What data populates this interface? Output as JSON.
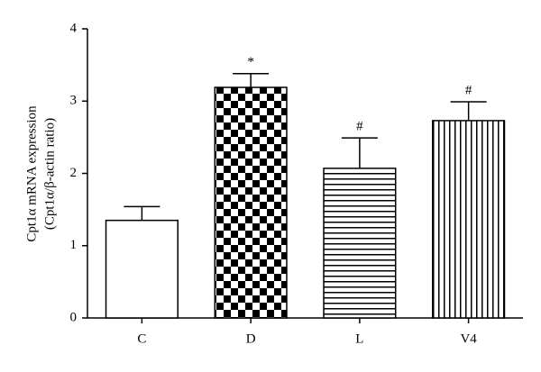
{
  "chart_data": {
    "type": "bar",
    "y_label": [
      "Cpt1α mRNA expression",
      "(Cpt1α/β-actin ratio)"
    ],
    "categories": [
      "C",
      "D",
      "L",
      "V4"
    ],
    "values": [
      1.35,
      3.19,
      2.07,
      2.73
    ],
    "errors": [
      0.19,
      0.19,
      0.42,
      0.26
    ],
    "markers": [
      null,
      "*",
      "#",
      "#"
    ],
    "patterns": [
      "none",
      "checker",
      "horizontal",
      "vertical"
    ],
    "color": "#000000",
    "ylim": [
      0,
      4
    ],
    "yticks": [
      0,
      1,
      2,
      3,
      4
    ]
  }
}
